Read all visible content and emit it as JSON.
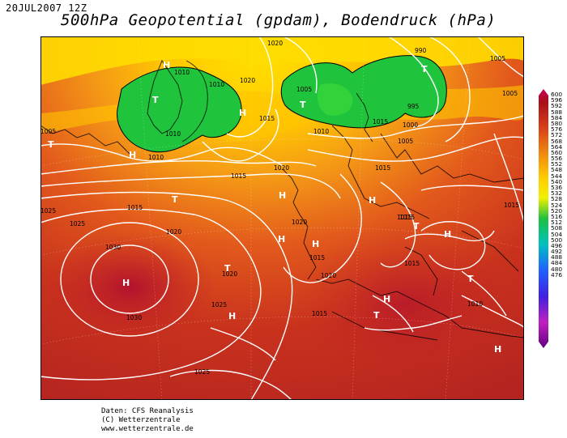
{
  "date": "20JUL2007 12Z",
  "title": "500hPa Geopotential (gpdam), Bodendruck (hPa)",
  "credits": [
    "Daten: CFS Reanalysis",
    "(C) Wetterzentrale",
    "www.wetterzentrale.de"
  ],
  "colorbar": {
    "labels": [
      "600",
      "596",
      "592",
      "588",
      "584",
      "580",
      "576",
      "572",
      "568",
      "564",
      "560",
      "556",
      "552",
      "548",
      "544",
      "540",
      "536",
      "532",
      "528",
      "524",
      "520",
      "516",
      "512",
      "508",
      "504",
      "500",
      "496",
      "492",
      "488",
      "484",
      "480",
      "476"
    ]
  },
  "pressure_markers": [
    {
      "label": "H"
    },
    {
      "label": "T"
    },
    {
      "label": "H"
    },
    {
      "label": "T"
    },
    {
      "label": "H"
    },
    {
      "label": "T"
    },
    {
      "label": "T"
    },
    {
      "label": "T"
    },
    {
      "label": "H"
    },
    {
      "label": "H"
    },
    {
      "label": "H"
    },
    {
      "label": "T"
    },
    {
      "label": "H"
    },
    {
      "label": "H"
    },
    {
      "label": "H"
    },
    {
      "label": "T"
    },
    {
      "label": "H"
    },
    {
      "label": "T"
    },
    {
      "label": "H"
    },
    {
      "label": "T"
    },
    {
      "label": "H"
    }
  ],
  "isobar_labels": [
    "1020",
    "1010",
    "1010",
    "1020",
    "1015",
    "1005",
    "1010",
    "1010",
    "1005",
    "1020",
    "1015",
    "1020",
    "1025",
    "1030",
    "1030",
    "1025",
    "1020",
    "1025",
    "1020",
    "1015",
    "1020",
    "1015",
    "1015",
    "1015",
    "1010",
    "1015",
    "995",
    "1000",
    "1005",
    "1005",
    "1005",
    "990",
    "1015",
    "1015",
    "1015",
    "1015",
    "1010",
    "1025"
  ]
}
